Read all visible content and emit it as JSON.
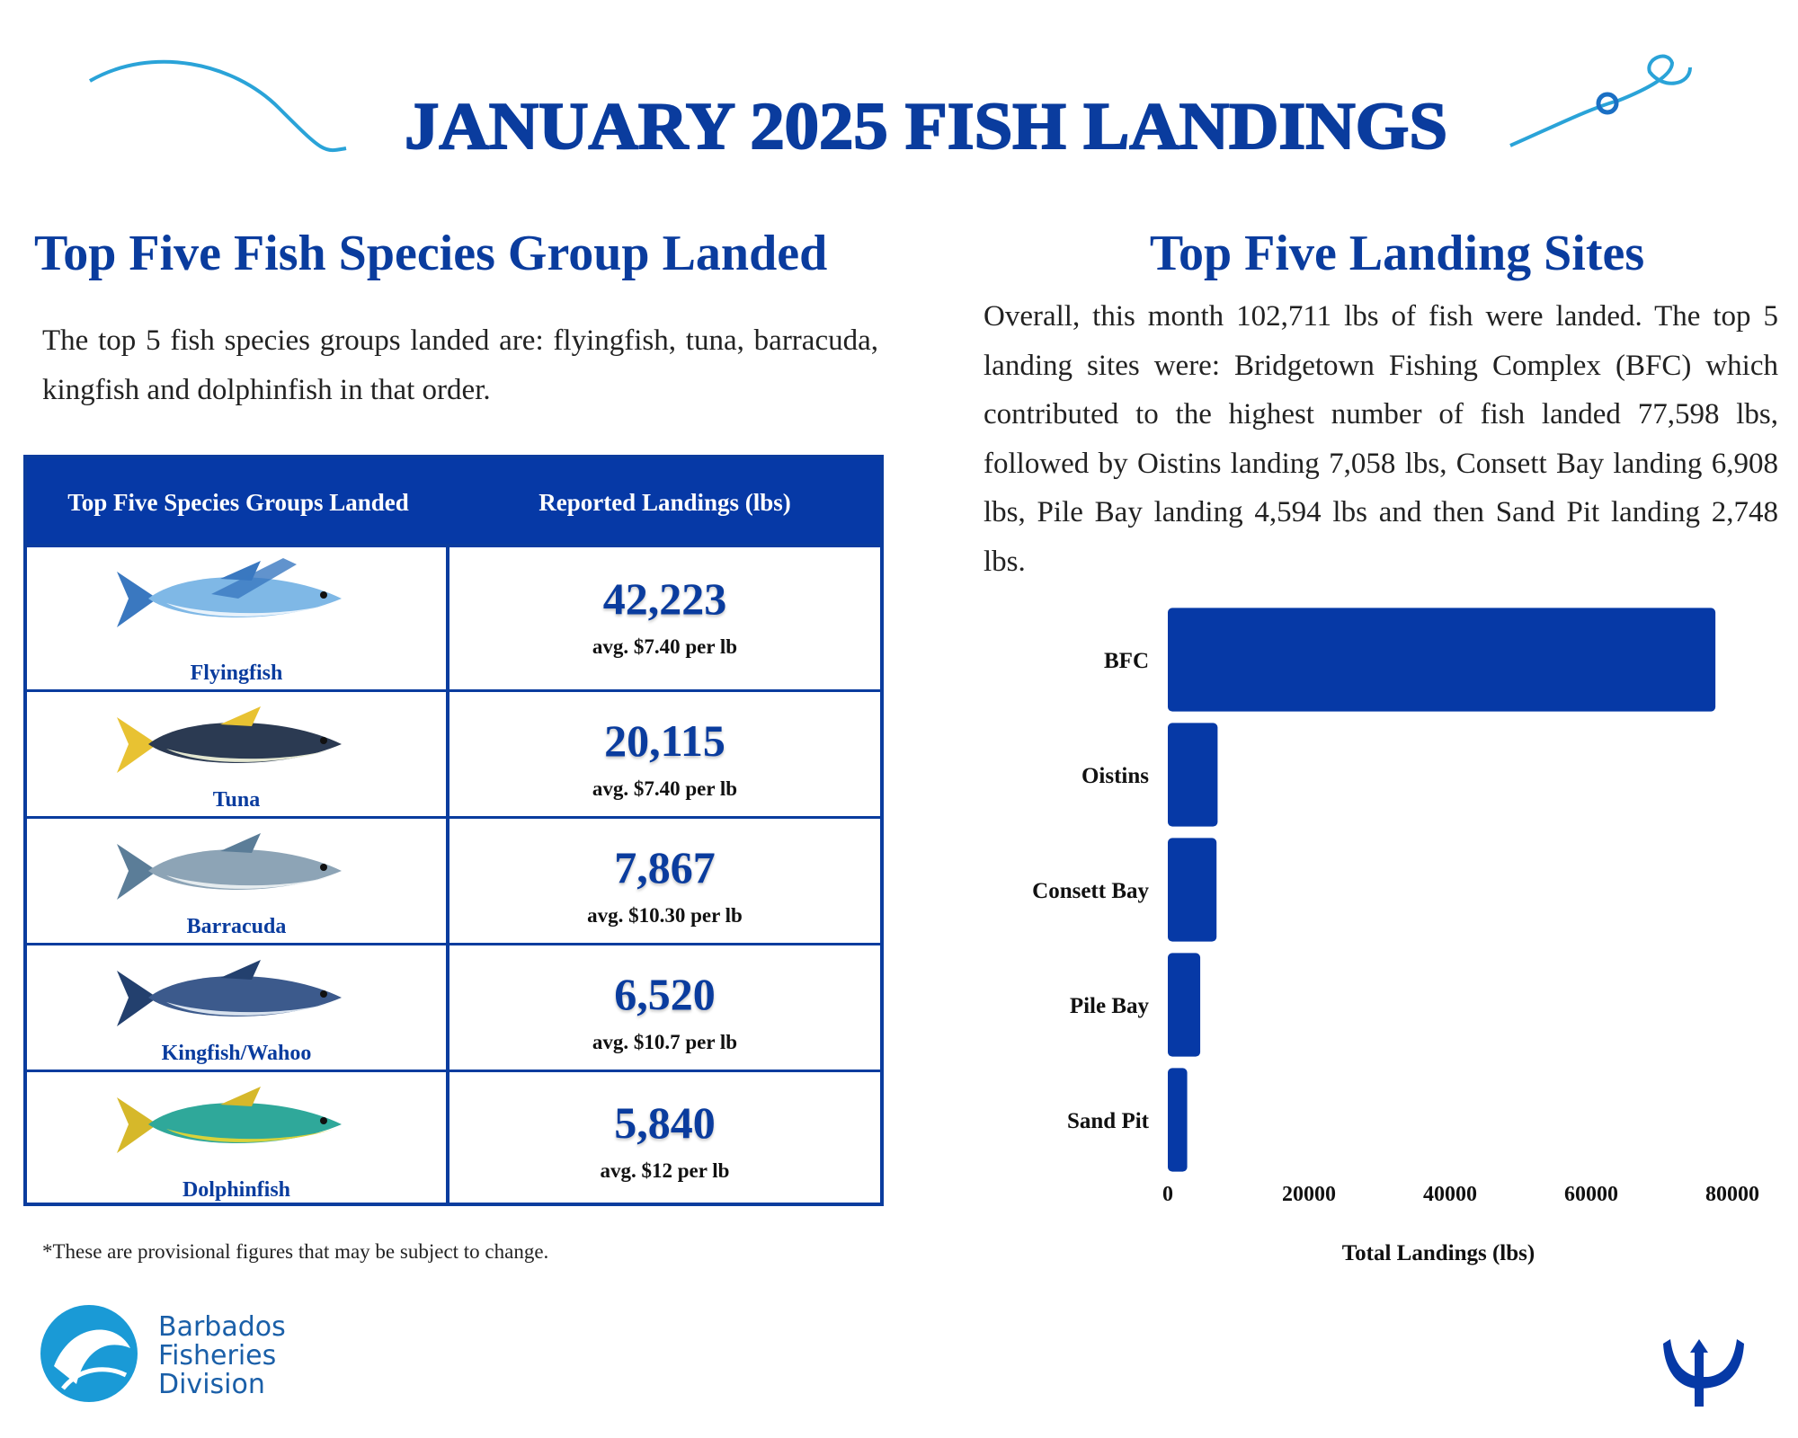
{
  "header": {
    "title": "JANUARY 2025 FISH LANDINGS"
  },
  "species_section": {
    "heading": "Top Five Fish Species Group Landed",
    "text": "The top 5 fish species groups landed are: flyingfish, tuna, barracuda, kingfish and dolphinfish in that order.",
    "table": {
      "columns": [
        "Top Five Species Groups Landed",
        "Reported Landings (lbs)"
      ],
      "rows": [
        {
          "species": "Flyingfish",
          "landings": "42,223",
          "price": "avg. $7.40 per lb"
        },
        {
          "species": "Tuna",
          "landings": "20,115",
          "price": "avg. $7.40 per lb"
        },
        {
          "species": "Barracuda",
          "landings": "7,867",
          "price": "avg. $10.30 per lb"
        },
        {
          "species": "Kingfish/Wahoo",
          "landings": "6,520",
          "price": "avg. $10.7 per lb"
        },
        {
          "species": "Dolphinfish",
          "landings": "5,840",
          "price": "avg. $12 per lb"
        }
      ]
    },
    "footnote": "*These are provisional figures that may be subject to change."
  },
  "sites_section": {
    "heading": "Top Five Landing Sites",
    "text": "Overall, this month 102,711 lbs of fish were landed. The top 5 landing sites were: Bridgetown Fishing Complex (BFC) which contributed to the highest number of fish landed 77,598 lbs, followed by Oistins landing 7,058 lbs, Consett Bay landing 6,908 lbs, Pile Bay landing 4,594 lbs and then Sand Pit landing 2,748 lbs."
  },
  "chart_data": {
    "type": "bar",
    "orientation": "horizontal",
    "categories": [
      "BFC",
      "Oistins",
      "Consett Bay",
      "Pile Bay",
      "Sand Pit"
    ],
    "values": [
      77598,
      7058,
      6908,
      4594,
      2748
    ],
    "color": "#0639a6",
    "xlim": [
      0,
      80000
    ],
    "xticks": [
      0,
      20000,
      40000,
      60000,
      80000
    ],
    "xlabel": "Total Landings (lbs)",
    "grid": false
  },
  "footer": {
    "organization": [
      "Barbados",
      "Fisheries",
      "Division"
    ]
  }
}
